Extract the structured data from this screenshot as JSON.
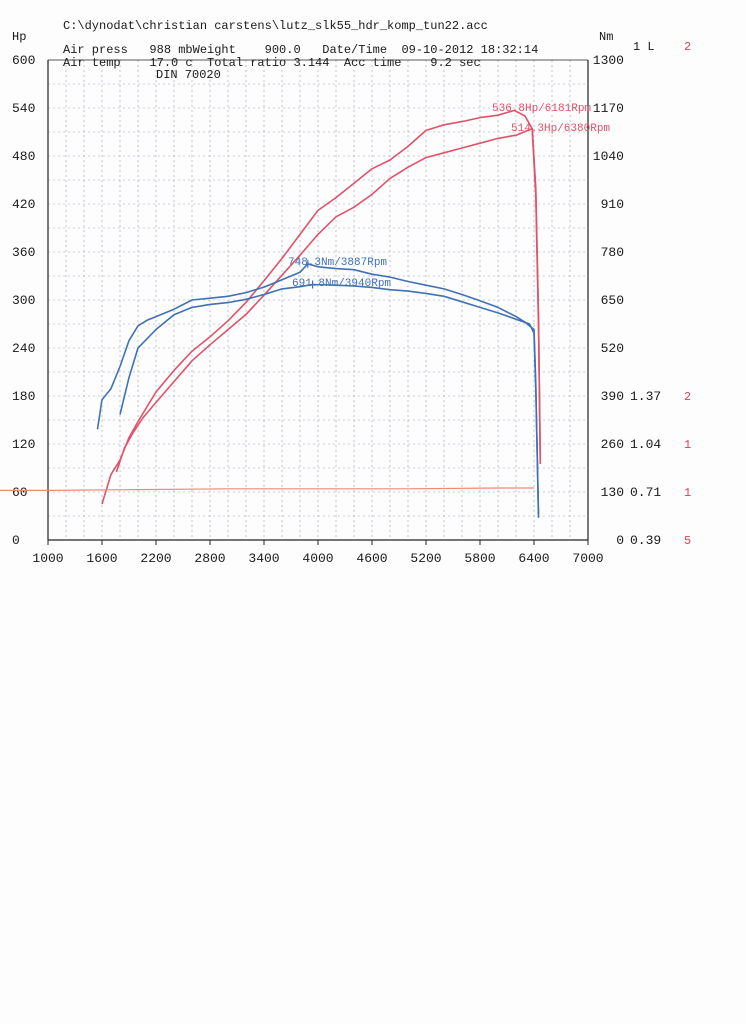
{
  "header": {
    "file_path": "C:\\dynodat\\christian carstens\\lutz_slk55_hdr_komp_tun22.acc",
    "line1": "Air press   988 mbWeight    900.0   Date/Time  09-10-2012 18:32:14",
    "line2": "Air temp    17.0 c  Total ratio 3.144  Acc time    9.2 sec",
    "line3": "DIN 70020"
  },
  "units": {
    "left": "Hp",
    "right": "Nm",
    "right2": "1 L",
    "right3": "2"
  },
  "colors": {
    "power": "#e0526a",
    "torque": "#3f72b5",
    "grid": "#9aa0b8",
    "baseline": "#f08a70"
  },
  "chart_data": {
    "type": "line",
    "xlim": [
      1000,
      7000
    ],
    "ylim_left": [
      0,
      600
    ],
    "ylim_right": [
      0,
      1300
    ],
    "x_ticks": [
      "1000",
      "1600",
      "2200",
      "2800",
      "3400",
      "4000",
      "4600",
      "5200",
      "5800",
      "6400",
      "7000"
    ],
    "y_left_ticks": [
      "0",
      "60",
      "120",
      "180",
      "240",
      "300",
      "360",
      "420",
      "480",
      "540",
      "600"
    ],
    "y_right_ticks": [
      "0",
      "130",
      "260",
      "390",
      "520",
      "650",
      "780",
      "910",
      "1040",
      "1170",
      "1300"
    ],
    "y_right2_ticks": [
      "0.39",
      "0.71",
      "1.04",
      "1.37"
    ],
    "y_right3_ticks": [
      "5",
      "1",
      "1",
      "2"
    ],
    "annotations": [
      {
        "text": "536.8Hp/6181Rpm",
        "series": "power",
        "x": 6181,
        "y": 537
      },
      {
        "text": "514.3Hp/6380Rpm",
        "series": "power",
        "x": 6380,
        "y": 514
      },
      {
        "text": "748.3Nm/3887Rpm",
        "series": "torque",
        "x": 3887,
        "y": 748
      },
      {
        "text": "691.8Nm/3940Rpm",
        "series": "torque",
        "x": 3940,
        "y": 692
      }
    ],
    "series": [
      {
        "axis": "left",
        "color": "#e0526a",
        "x": [
          1600,
          1700,
          1800,
          1900,
          2000,
          2200,
          2400,
          2600,
          2800,
          3000,
          3200,
          3400,
          3600,
          3800,
          4000,
          4200,
          4400,
          4600,
          4800,
          5000,
          5200,
          5400,
          5600,
          5800,
          6000,
          6181,
          6300,
          6380,
          6420,
          6450,
          6470
        ],
        "y": [
          45,
          82,
          100,
          128,
          148,
          185,
          212,
          236,
          254,
          274,
          297,
          324,
          352,
          382,
          412,
          428,
          446,
          464,
          475,
          492,
          512,
          519,
          523,
          528,
          531,
          537,
          530,
          514,
          430,
          270,
          95
        ]
      },
      {
        "axis": "left",
        "color": "#e0526a",
        "x": [
          1760,
          1850,
          1950,
          2050,
          2200,
          2400,
          2600,
          2800,
          3000,
          3200,
          3400,
          3600,
          3800,
          4000,
          4200,
          4400,
          4600,
          4800,
          5000,
          5200,
          5400,
          5600,
          5800,
          6000,
          6200,
          6380,
          6420,
          6450,
          6470
        ],
        "y": [
          85,
          115,
          135,
          152,
          172,
          198,
          224,
          244,
          263,
          282,
          306,
          331,
          356,
          382,
          404,
          416,
          432,
          452,
          466,
          478,
          484,
          490,
          496,
          502,
          506,
          514,
          440,
          280,
          100
        ]
      },
      {
        "axis": "right",
        "color": "#3f72b5",
        "x": [
          1550,
          1600,
          1700,
          1800,
          1900,
          2000,
          2100,
          2200,
          2400,
          2600,
          2800,
          3000,
          3200,
          3400,
          3600,
          3800,
          3887,
          4000,
          4200,
          4400,
          4600,
          4800,
          5000,
          5200,
          5400,
          5600,
          5800,
          6000,
          6200,
          6300,
          6400,
          6420,
          6450
        ],
        "y": [
          300,
          380,
          410,
          470,
          540,
          580,
          595,
          605,
          625,
          650,
          655,
          660,
          670,
          685,
          705,
          725,
          748,
          740,
          735,
          732,
          720,
          712,
          700,
          690,
          680,
          665,
          648,
          630,
          605,
          590,
          570,
          420,
          60
        ]
      },
      {
        "axis": "right",
        "color": "#3f72b5",
        "x": [
          1800,
          1900,
          2000,
          2100,
          2200,
          2400,
          2600,
          2800,
          3000,
          3200,
          3400,
          3600,
          3800,
          3940,
          4200,
          4400,
          4600,
          4800,
          5000,
          5200,
          5400,
          5600,
          5800,
          6000,
          6200,
          6350,
          6400,
          6420,
          6450
        ],
        "y": [
          340,
          440,
          520,
          545,
          570,
          610,
          630,
          638,
          643,
          652,
          665,
          680,
          686,
          692,
          690,
          688,
          684,
          678,
          674,
          668,
          660,
          645,
          630,
          615,
          598,
          585,
          560,
          410,
          70
        ]
      },
      {
        "axis": "left",
        "color": "#f08a70",
        "x": [
          1000,
          2000,
          3000,
          4000,
          5000,
          6000,
          6400
        ],
        "y": [
          62,
          63,
          64,
          64,
          64,
          65,
          65
        ]
      }
    ]
  }
}
